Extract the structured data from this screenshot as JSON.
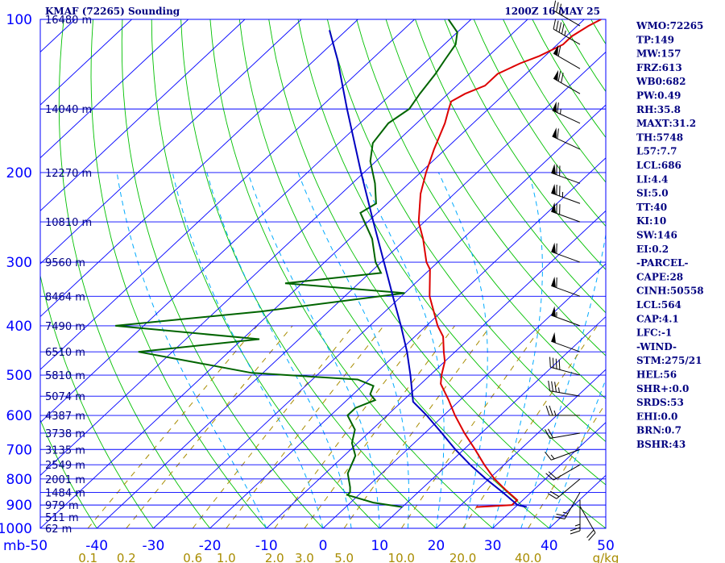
{
  "header": {
    "station": "KMAF (72265) Sounding",
    "time": "1200Z 16 MAY 25"
  },
  "indices": [
    "WMO:72265",
    "TP:149",
    "MW:157",
    "FRZ:613",
    "WB0:682",
    "PW:0.49",
    "RH:35.8",
    "MAXT:31.2",
    "TH:5748",
    "L57:7.7",
    "LCL:686",
    "LI:4.4",
    "SI:5.0",
    "TT:40",
    "KI:10",
    "SW:146",
    "EI:0.2",
    "-PARCEL-",
    "CAPE:28",
    "CINH:50558",
    "LCL:564",
    "CAP:4.1",
    "LFC:-1",
    "-WIND-",
    "STM:275/21",
    "HEL:56",
    "SHR+:0.0",
    "SRDS:53",
    "EHI:0.0",
    "BRN:0.7",
    "BSHR:43"
  ],
  "colors": {
    "isobar": "#0000ff",
    "isotherm": "#0000ff",
    "dry_adiabat": "#00c000",
    "moist_adiabat": "#00aaff",
    "mixing_ratio": "#a88c00",
    "temperature": "#dd0000",
    "dewpoint": "#006400",
    "parcel": "#0000c0",
    "height_label": "#000080",
    "wind_barb": "#000000"
  },
  "chart_data": {
    "type": "line",
    "title": "KMAF (72265) Sounding",
    "subtitle": "1200Z 16 MAY 25",
    "y_axis": {
      "unit": "mb",
      "scale": "log",
      "range": [
        1000,
        100
      ],
      "ticks": [
        100,
        200,
        300,
        400,
        500,
        600,
        700,
        800,
        900,
        1000
      ]
    },
    "x_axis": {
      "unit": "C",
      "range": [
        -50,
        50
      ],
      "ticks": [
        -50,
        -40,
        -30,
        -20,
        -10,
        0,
        10,
        20,
        30,
        40,
        50
      ],
      "tick_labels": [
        "mb-50",
        "-40",
        "-30",
        "-20",
        "-10",
        "0",
        "10",
        "20",
        "30",
        "40",
        "50"
      ]
    },
    "mixing_ratio_axis": {
      "unit": "g/kg",
      "values": [
        0.1,
        0.2,
        0.6,
        1.0,
        2.0,
        3.0,
        5.0,
        10.0,
        20.0,
        40.0
      ],
      "labels": [
        "0.1",
        "0.2",
        "0.6",
        "1.0",
        "2.0",
        "3.0",
        "5.0",
        "10.0",
        "20.0",
        "40.0"
      ]
    },
    "height_labels": [
      {
        "p": 100,
        "label": "16480 m"
      },
      {
        "p": 150,
        "label": "14040 m"
      },
      {
        "p": 200,
        "label": "12270 m"
      },
      {
        "p": 250,
        "label": "10810 m"
      },
      {
        "p": 300,
        "label": "9560 m"
      },
      {
        "p": 350,
        "label": "8464 m"
      },
      {
        "p": 400,
        "label": "7490 m"
      },
      {
        "p": 450,
        "label": "6510 m"
      },
      {
        "p": 500,
        "label": "5810 m"
      },
      {
        "p": 550,
        "label": "5074 m"
      },
      {
        "p": 600,
        "label": "4387 m"
      },
      {
        "p": 650,
        "label": "3738 m"
      },
      {
        "p": 700,
        "label": "3135 m"
      },
      {
        "p": 750,
        "label": "2549 m"
      },
      {
        "p": 800,
        "label": "2001 m"
      },
      {
        "p": 850,
        "label": "1484 m"
      },
      {
        "p": 900,
        "label": "979 m"
      },
      {
        "p": 950,
        "label": "511 m"
      },
      {
        "p": 1000,
        "label": "62 m"
      }
    ],
    "series": [
      {
        "kind": "temperature",
        "points": [
          {
            "p": 908,
            "t": 23
          },
          {
            "p": 900,
            "t": 29
          },
          {
            "p": 880,
            "t": 29
          },
          {
            "p": 840,
            "t": 25
          },
          {
            "p": 800,
            "t": 21
          },
          {
            "p": 750,
            "t": 16.5
          },
          {
            "p": 700,
            "t": 12
          },
          {
            "p": 650,
            "t": 7
          },
          {
            "p": 600,
            "t": 2
          },
          {
            "p": 560,
            "t": -2
          },
          {
            "p": 520,
            "t": -6.5
          },
          {
            "p": 500,
            "t": -8
          },
          {
            "p": 470,
            "t": -10
          },
          {
            "p": 450,
            "t": -12
          },
          {
            "p": 420,
            "t": -15
          },
          {
            "p": 400,
            "t": -18
          },
          {
            "p": 350,
            "t": -25
          },
          {
            "p": 310,
            "t": -30
          },
          {
            "p": 300,
            "t": -32
          },
          {
            "p": 270,
            "t": -37
          },
          {
            "p": 250,
            "t": -41
          },
          {
            "p": 220,
            "t": -46
          },
          {
            "p": 200,
            "t": -49
          },
          {
            "p": 180,
            "t": -52
          },
          {
            "p": 160,
            "t": -55
          },
          {
            "p": 150,
            "t": -57
          },
          {
            "p": 145,
            "t": -58
          },
          {
            "p": 140,
            "t": -57
          },
          {
            "p": 135,
            "t": -55
          },
          {
            "p": 128,
            "t": -55
          },
          {
            "p": 122,
            "t": -53
          },
          {
            "p": 118,
            "t": -51
          },
          {
            "p": 112,
            "t": -49
          },
          {
            "p": 108,
            "t": -49
          },
          {
            "p": 103,
            "t": -48
          },
          {
            "p": 100,
            "t": -47
          }
        ]
      },
      {
        "kind": "dewpoint",
        "points": [
          {
            "p": 908,
            "t": 10
          },
          {
            "p": 890,
            "t": 4
          },
          {
            "p": 860,
            "t": -2
          },
          {
            "p": 850,
            "t": -2
          },
          {
            "p": 830,
            "t": -3
          },
          {
            "p": 780,
            "t": -6
          },
          {
            "p": 720,
            "t": -8
          },
          {
            "p": 680,
            "t": -11
          },
          {
            "p": 640,
            "t": -13
          },
          {
            "p": 600,
            "t": -17
          },
          {
            "p": 580,
            "t": -17
          },
          {
            "p": 560,
            "t": -15
          },
          {
            "p": 545,
            "t": -17
          },
          {
            "p": 525,
            "t": -18
          },
          {
            "p": 510,
            "t": -22
          },
          {
            "p": 495,
            "t": -42
          },
          {
            "p": 470,
            "t": -55
          },
          {
            "p": 450,
            "t": -66
          },
          {
            "p": 425,
            "t": -47
          },
          {
            "p": 400,
            "t": -75
          },
          {
            "p": 375,
            "t": -52
          },
          {
            "p": 345,
            "t": -30
          },
          {
            "p": 330,
            "t": -53
          },
          {
            "p": 315,
            "t": -38
          },
          {
            "p": 300,
            "t": -41
          },
          {
            "p": 270,
            "t": -46
          },
          {
            "p": 240,
            "t": -53
          },
          {
            "p": 230,
            "t": -52
          },
          {
            "p": 210,
            "t": -56
          },
          {
            "p": 190,
            "t": -61
          },
          {
            "p": 175,
            "t": -64
          },
          {
            "p": 160,
            "t": -65
          },
          {
            "p": 150,
            "t": -64
          },
          {
            "p": 140,
            "t": -65
          },
          {
            "p": 128,
            "t": -66
          },
          {
            "p": 120,
            "t": -67
          },
          {
            "p": 112,
            "t": -68
          },
          {
            "p": 106,
            "t": -70
          },
          {
            "p": 100,
            "t": -74
          }
        ]
      },
      {
        "kind": "parcel",
        "points": [
          {
            "p": 908,
            "t": 32
          },
          {
            "p": 900,
            "t": 30
          },
          {
            "p": 850,
            "t": 25
          },
          {
            "p": 800,
            "t": 19.5
          },
          {
            "p": 750,
            "t": 14
          },
          {
            "p": 700,
            "t": 8.5
          },
          {
            "p": 650,
            "t": 3
          },
          {
            "p": 600,
            "t": -3
          },
          {
            "p": 564,
            "t": -8
          },
          {
            "p": 500,
            "t": -13.5
          },
          {
            "p": 450,
            "t": -18.5
          },
          {
            "p": 400,
            "t": -24.5
          },
          {
            "p": 350,
            "t": -31.5
          },
          {
            "p": 300,
            "t": -39.5
          },
          {
            "p": 250,
            "t": -49
          },
          {
            "p": 200,
            "t": -60.5
          },
          {
            "p": 150,
            "t": -75
          },
          {
            "p": 120,
            "t": -86
          },
          {
            "p": 105,
            "t": -93
          }
        ]
      }
    ],
    "wind_barbs": [
      {
        "p": 905,
        "dir": 150,
        "spd": 20
      },
      {
        "p": 880,
        "dir": 180,
        "spd": 25
      },
      {
        "p": 850,
        "dir": 210,
        "spd": 25
      },
      {
        "p": 800,
        "dir": 230,
        "spd": 20
      },
      {
        "p": 750,
        "dir": 240,
        "spd": 20
      },
      {
        "p": 700,
        "dir": 250,
        "spd": 15
      },
      {
        "p": 650,
        "dir": 260,
        "spd": 20
      },
      {
        "p": 600,
        "dir": 270,
        "spd": 25
      },
      {
        "p": 550,
        "dir": 280,
        "spd": 35
      },
      {
        "p": 500,
        "dir": 285,
        "spd": 40
      },
      {
        "p": 450,
        "dir": 290,
        "spd": 50
      },
      {
        "p": 400,
        "dir": 290,
        "spd": 55
      },
      {
        "p": 350,
        "dir": 290,
        "spd": 60
      },
      {
        "p": 300,
        "dir": 290,
        "spd": 60
      },
      {
        "p": 250,
        "dir": 290,
        "spd": 70
      },
      {
        "p": 230,
        "dir": 290,
        "spd": 75
      },
      {
        "p": 210,
        "dir": 290,
        "spd": 70
      },
      {
        "p": 180,
        "dir": 295,
        "spd": 60
      },
      {
        "p": 160,
        "dir": 295,
        "spd": 65
      },
      {
        "p": 140,
        "dir": 300,
        "spd": 70
      },
      {
        "p": 125,
        "dir": 300,
        "spd": 60
      },
      {
        "p": 112,
        "dir": 300,
        "spd": 45
      },
      {
        "p": 103,
        "dir": 300,
        "spd": 35
      }
    ]
  }
}
